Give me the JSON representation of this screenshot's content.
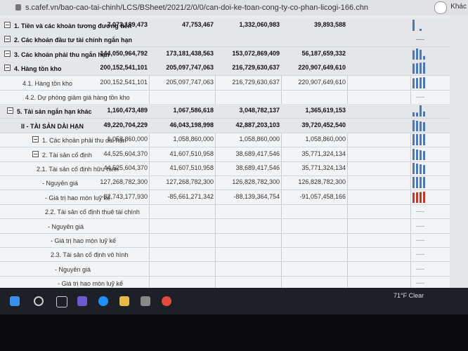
{
  "browser": {
    "url": "s.cafef.vn/bao-cao-tai-chinh/LCS/BSheet/2021/2/0/0/can-doi-ke-toan-cong-ty-co-phan-licogi-166.chn",
    "menu": "Khác"
  },
  "table": {
    "empty_marker": "----",
    "rows": [
      {
        "label": "1. Tiền và các khoản tương đương tiền",
        "values": [
          "7,073,189,473",
          "47,753,467",
          "1,332,060,983",
          "39,893,588"
        ]
      },
      {
        "label": "2. Các khoản đầu tư tài chính ngắn hạn",
        "values": []
      },
      {
        "label": "3. Các khoản phải thu ngắn hạn",
        "values": [
          "144,050,964,792",
          "173,181,438,563",
          "153,072,869,409",
          "56,187,659,332"
        ]
      },
      {
        "label": "4. Hàng tồn kho",
        "values": [
          "200,152,541,101",
          "205,097,747,063",
          "216,729,630,637",
          "220,907,649,610"
        ]
      },
      {
        "label": "4.1. Hàng tồn kho",
        "values": [
          "200,152,541,101",
          "205,097,747,063",
          "216,729,630,637",
          "220,907,649,610"
        ]
      },
      {
        "label": "4.2. Dự phòng giảm giá hàng tồn kho",
        "values": []
      },
      {
        "label": "5. Tài sản ngắn hạn khác",
        "values": [
          "1,160,473,489",
          "1,067,586,618",
          "3,048,782,137",
          "1,365,619,153"
        ]
      },
      {
        "label": "II - TÀI SẢN DÀI HẠN",
        "values": [
          "49,220,704,229",
          "46,043,198,998",
          "42,887,203,103",
          "39,720,452,540"
        ]
      },
      {
        "label": "1. Các khoản phải thu dài hạn",
        "values": [
          "1,058,860,000",
          "1,058,860,000",
          "1,058,860,000",
          "1,058,860,000"
        ]
      },
      {
        "label": "2. Tài sản cố định",
        "values": [
          "44,525,604,370",
          "41,607,510,958",
          "38,689,417,546",
          "35,771,324,134"
        ]
      },
      {
        "label": "2.1. Tài sản cố định hữu hình",
        "values": [
          "44,525,604,370",
          "41,607,510,958",
          "38,689,417,546",
          "35,771,324,134"
        ]
      },
      {
        "label": "- Nguyên giá",
        "values": [
          "127,268,782,300",
          "127,268,782,300",
          "126,828,782,300",
          "126,828,782,300"
        ]
      },
      {
        "label": "- Giá trị hao mòn luỹ kế",
        "values": [
          "-82,743,177,930",
          "-85,661,271,342",
          "-88,139,364,754",
          "-91,057,458,166"
        ]
      },
      {
        "label": "2.2. Tài sản cố định thuê tài chính",
        "values": []
      },
      {
        "label": "- Nguyên giá",
        "values": []
      },
      {
        "label": "- Giá trị hao mòn luỹ kế",
        "values": []
      },
      {
        "label": "2.3. Tài sản cố định vô hình",
        "values": []
      },
      {
        "label": "- Nguyên giá",
        "values": []
      },
      {
        "label": "- Giá trị hao mòn luỹ kế",
        "values": []
      }
    ]
  },
  "taskbar": {
    "weather": "71°F Clear"
  }
}
